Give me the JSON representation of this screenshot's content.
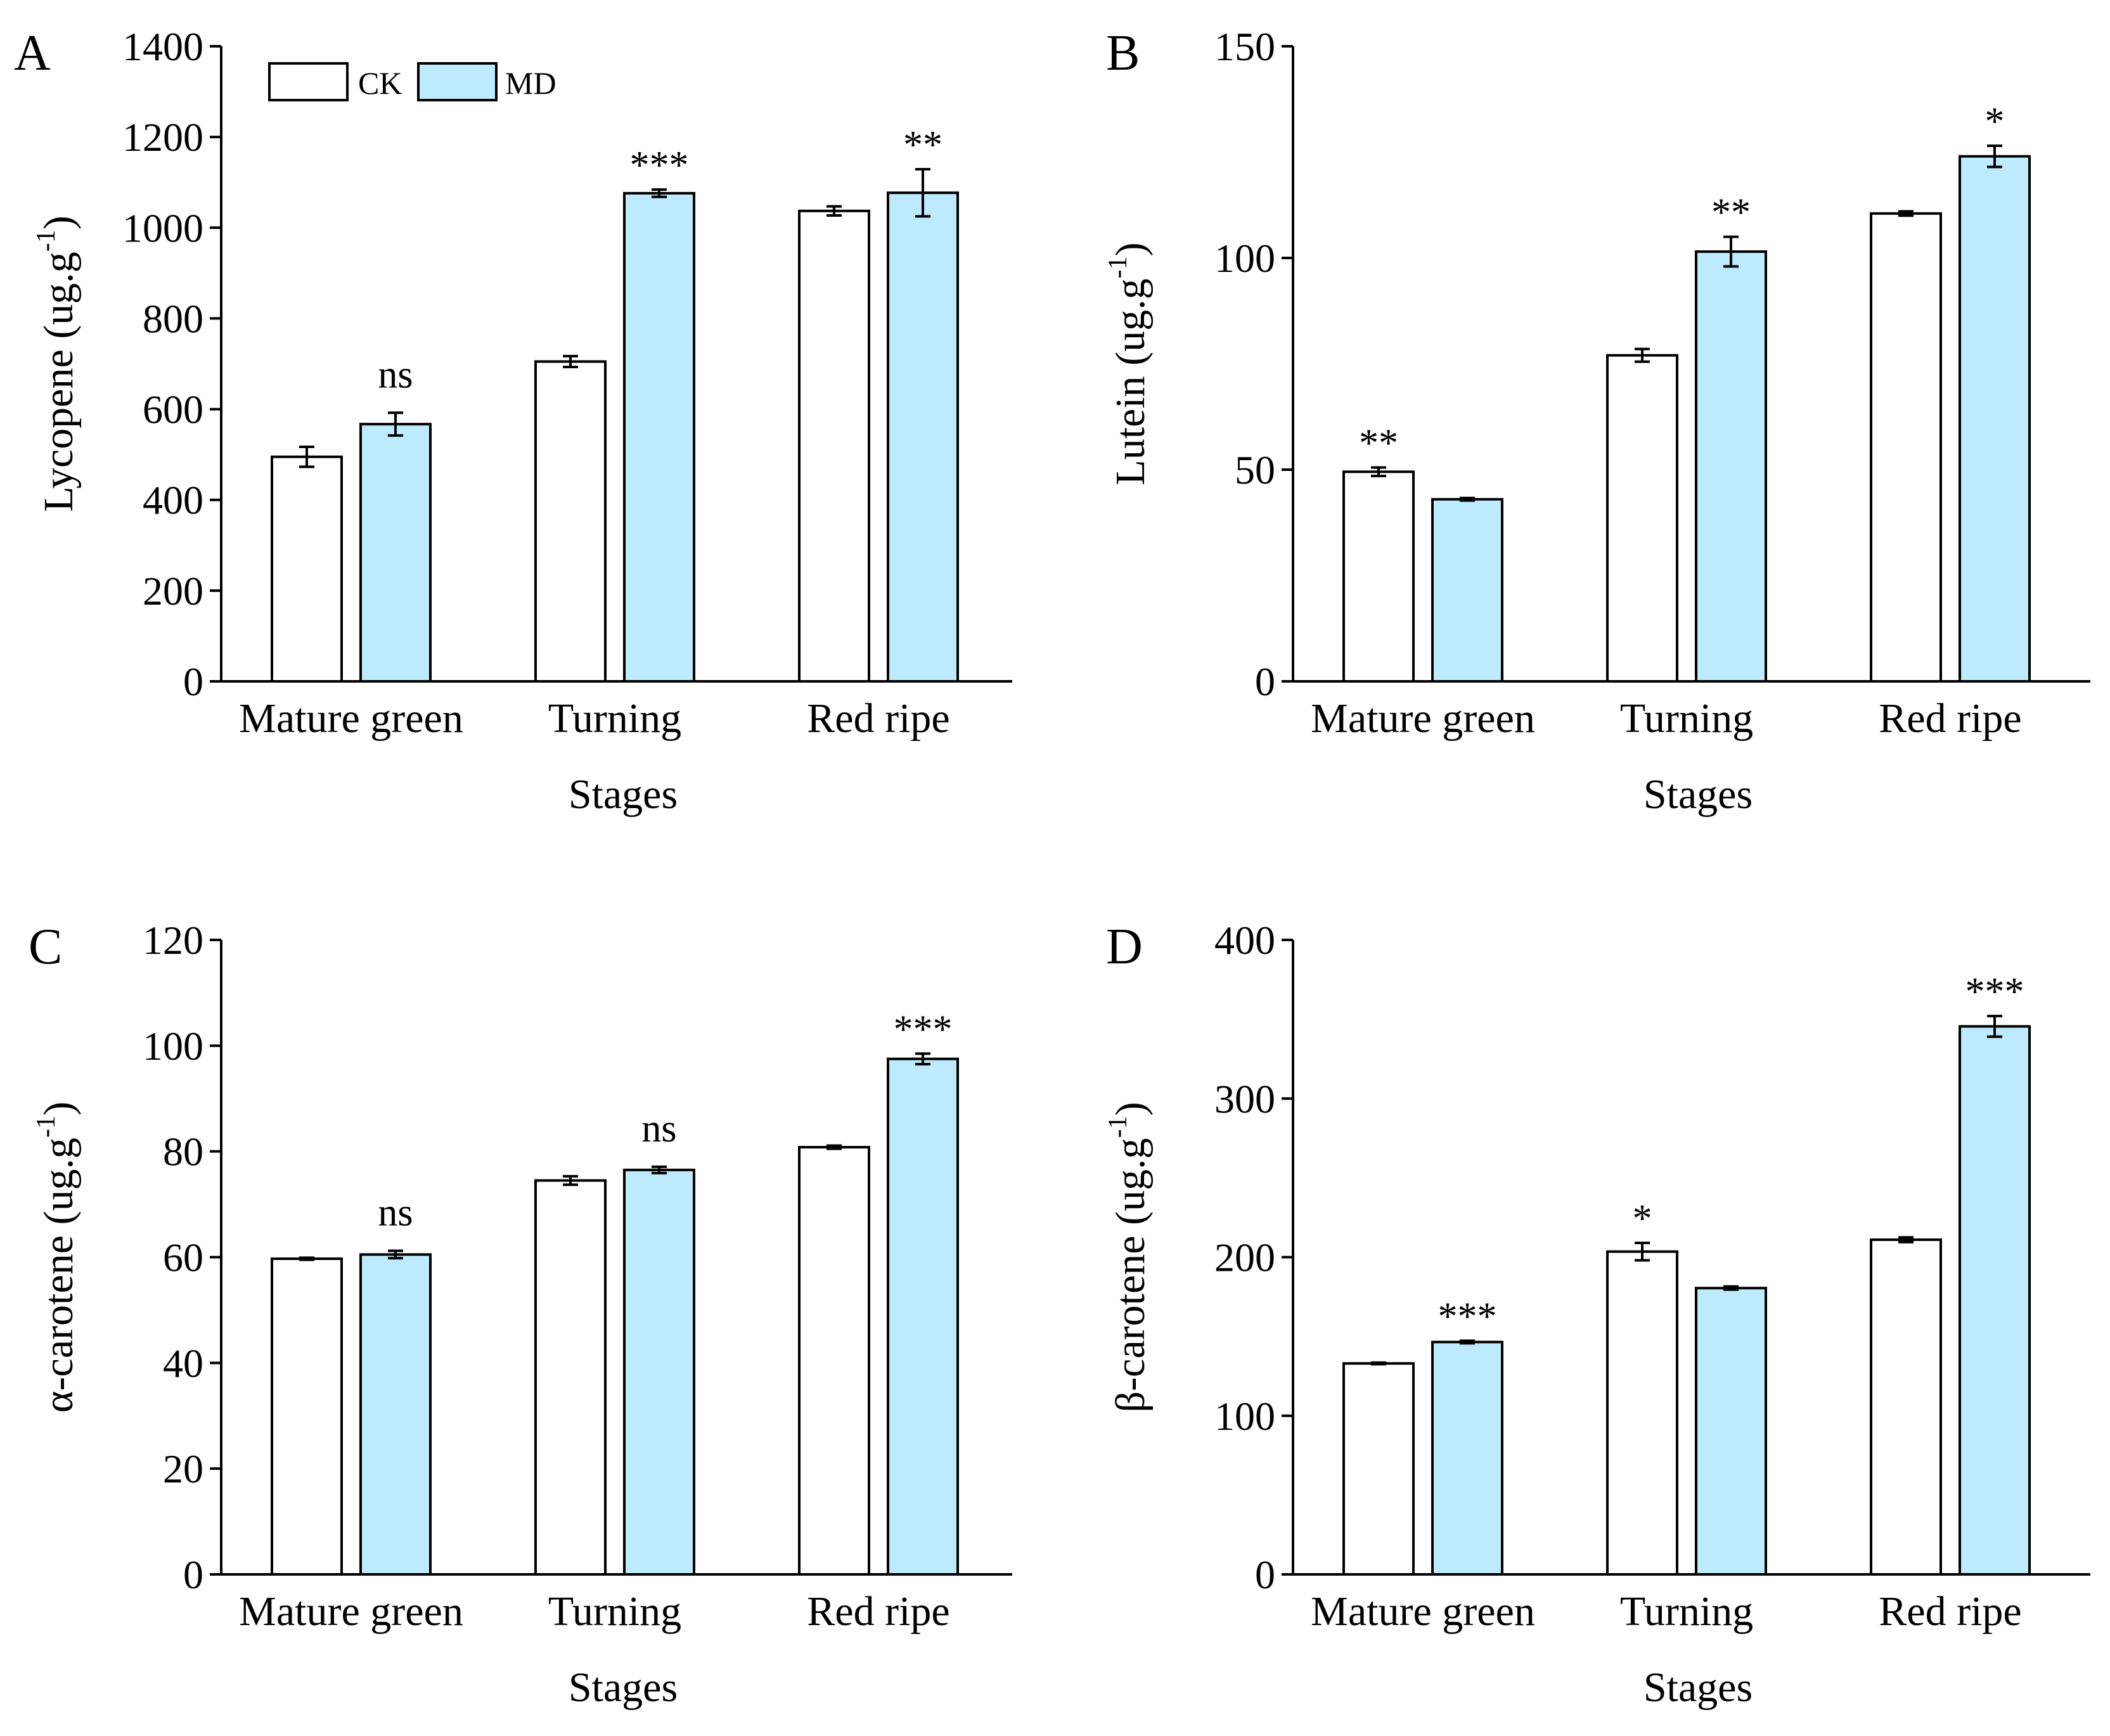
{
  "legend": {
    "series": [
      {
        "name": "CK",
        "color": "#ffffff"
      },
      {
        "name": "MD",
        "color": "#bdeafc"
      }
    ]
  },
  "colors": {
    "stroke": "#000000",
    "ck_fill": "#ffffff",
    "md_fill": "#bdeafc"
  },
  "chart_data": [
    {
      "type": "bar",
      "panel": "A",
      "categories": [
        "Mature green",
        "Turning",
        "Red ripe"
      ],
      "xlabel": "Stages",
      "ylabel_main": "Lycopene (ug.g",
      "ylabel_sup": "-1",
      "ylabel_end": ")",
      "ylim": [
        0,
        1400
      ],
      "yticks": [
        "0",
        "200",
        "400",
        "600",
        "800",
        "1000",
        "1200",
        "1400"
      ],
      "series": [
        {
          "name": "CK",
          "values": [
            495,
            705,
            1037
          ],
          "errors": [
            22,
            12,
            10
          ]
        },
        {
          "name": "MD",
          "values": [
            567,
            1076,
            1077
          ],
          "errors": [
            25,
            8,
            52
          ]
        }
      ],
      "annotations": [
        {
          "text": "ns",
          "category": 0,
          "over": "MD"
        },
        {
          "text": "***",
          "category": 1,
          "over": "MD"
        },
        {
          "text": "**",
          "category": 2,
          "over": "MD"
        }
      ],
      "legend_shown": true
    },
    {
      "type": "bar",
      "panel": "B",
      "categories": [
        "Mature green",
        "Turning",
        "Red ripe"
      ],
      "xlabel": "Stages",
      "ylabel_main": "Lutein (ug.g",
      "ylabel_sup": "-1",
      "ylabel_end": ")",
      "ylim": [
        0,
        150
      ],
      "yticks": [
        "0",
        "50",
        "100",
        "150"
      ],
      "series": [
        {
          "name": "CK",
          "values": [
            49.5,
            77,
            110.5
          ],
          "errors": [
            1.0,
            1.5,
            0.5
          ]
        },
        {
          "name": "MD",
          "values": [
            43,
            101.5,
            124
          ],
          "errors": [
            0.3,
            3.5,
            2.5
          ]
        }
      ],
      "annotations": [
        {
          "text": "**",
          "category": 0,
          "over": "CK"
        },
        {
          "text": "**",
          "category": 1,
          "over": "MD"
        },
        {
          "text": "*",
          "category": 2,
          "over": "MD"
        }
      ],
      "legend_shown": false
    },
    {
      "type": "bar",
      "panel": "C",
      "categories": [
        "Mature green",
        "Turning",
        "Red ripe"
      ],
      "xlabel": "Stages",
      "ylabel_main": "α-carotene (ug.g",
      "ylabel_sup": "-1",
      "ylabel_end": ")",
      "ylim": [
        0,
        120
      ],
      "yticks": [
        "0",
        "20",
        "40",
        "60",
        "80",
        "100",
        "120"
      ],
      "series": [
        {
          "name": "CK",
          "values": [
            59.7,
            74.5,
            80.8
          ],
          "errors": [
            0.2,
            0.8,
            0.3
          ]
        },
        {
          "name": "MD",
          "values": [
            60.5,
            76.5,
            97.5
          ],
          "errors": [
            0.7,
            0.6,
            1.0
          ]
        }
      ],
      "annotations": [
        {
          "text": "ns",
          "category": 0,
          "over": "MD"
        },
        {
          "text": "ns",
          "category": 1,
          "over": "MD"
        },
        {
          "text": "***",
          "category": 2,
          "over": "MD"
        }
      ],
      "legend_shown": false
    },
    {
      "type": "bar",
      "panel": "D",
      "categories": [
        "Mature green",
        "Turning",
        "Red ripe"
      ],
      "xlabel": "Stages",
      "ylabel_main": "β-carotene (ug.g",
      "ylabel_sup": "-1",
      "ylabel_end": ")",
      "ylim": [
        0,
        400
      ],
      "yticks": [
        "0",
        "100",
        "200",
        "300",
        "400"
      ],
      "series": [
        {
          "name": "CK",
          "values": [
            133,
            203.5,
            211
          ],
          "errors": [
            0.5,
            5.5,
            1.5
          ]
        },
        {
          "name": "MD",
          "values": [
            146.5,
            180.5,
            345.5
          ],
          "errors": [
            0.8,
            1.0,
            6.5
          ]
        }
      ],
      "annotations": [
        {
          "text": "***",
          "category": 0,
          "over": "MD"
        },
        {
          "text": "*",
          "category": 1,
          "over": "CK"
        },
        {
          "text": "***",
          "category": 2,
          "over": "MD"
        }
      ],
      "legend_shown": false
    }
  ]
}
